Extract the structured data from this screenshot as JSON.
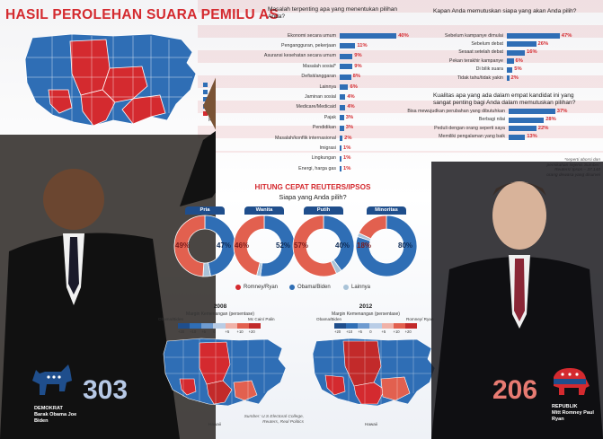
{
  "title": "HASIL PEROLEHAN SUARA PEMILU AS",
  "colors": {
    "red": "#d42a2f",
    "blue": "#2f6eb5",
    "gray": "#a9c3d8",
    "navy": "#1f4e8c"
  },
  "left_map_legend": [
    "D",
    "R"
  ],
  "chart_data": [
    {
      "type": "bar",
      "title": "Masalah terpenting apa yang menentukan pilihan Anda?",
      "categories": [
        "Ekonomi secara umum",
        "Pengangguran, pekerjaan",
        "Asuransi kesehatan secara umum",
        "Masalah sosial*",
        "Defisit/anggaran",
        "Lainnya",
        "Jaminan sosial",
        "Medicare/Medicaid",
        "Pajak",
        "Pendidikan",
        "Masalah/konflik internasional",
        "Imigrasi",
        "Lingkungan",
        "Energi, harga gas"
      ],
      "values": [
        40,
        11,
        9,
        9,
        8,
        6,
        4,
        4,
        3,
        3,
        2,
        1,
        1,
        1
      ],
      "labels": [
        "40%",
        "11%",
        "9%",
        "9%",
        "8%",
        "6%",
        "4%",
        "4%",
        "3%",
        "3%",
        "2%",
        "1%",
        "1%",
        "1%"
      ]
    },
    {
      "type": "bar",
      "title": "Kapan Anda memutuskan siapa yang akan Anda pilih?",
      "categories": [
        "Sebelum kampanye dimulai",
        "Sebelum debat",
        "Sesaat setelah debat",
        "Pekan terakhir kampanye",
        "Di bilik suara",
        "Tidak tahu/tidak yakin"
      ],
      "values": [
        47,
        26,
        16,
        6,
        5,
        2
      ],
      "labels": [
        "47%",
        "26%",
        "16%",
        "6%",
        "5%",
        "2%"
      ]
    },
    {
      "type": "bar",
      "title": "Kualitas apa yang ada dalam empat kandidat ini yang sangat penting bagi Anda dalam memutuskan pilihan?",
      "categories": [
        "Bisa mewujudkan perubahan yang dibutuhkan",
        "Berbagi nilai",
        "Peduli dengan orang seperti saya",
        "Memiliki pengalaman yang baik"
      ],
      "values": [
        37,
        28,
        22,
        13
      ],
      "labels": [
        "37%",
        "28%",
        "22%",
        "13%"
      ]
    },
    {
      "type": "pie",
      "title": "HITUNG CEPAT REUTERS/IPSOS",
      "subtitle": "Siapa yang Anda pilih?",
      "groups": [
        {
          "name": "Pria",
          "romney": 49,
          "obama": 47,
          "other": 4,
          "labels": [
            "49%",
            "47%"
          ]
        },
        {
          "name": "Wanita",
          "romney": 46,
          "obama": 52,
          "other": 2,
          "labels": [
            "46%",
            "52%"
          ]
        },
        {
          "name": "Putih",
          "romney": 57,
          "obama": 40,
          "other": 3,
          "labels": [
            "57%",
            "40%"
          ]
        },
        {
          "name": "Minoritas",
          "romney": 18,
          "obama": 80,
          "other": 2,
          "labels": [
            "18%",
            "80%"
          ]
        }
      ],
      "legend": [
        "Romney/Ryan",
        "Obama/Biden",
        "Lainnya"
      ]
    }
  ],
  "footnote": "*seperti aborsi dan pernikahan sejenis Sumber: Reuters/ Ipsos – 37.140 orang dewasa yang disurvei",
  "map2008": {
    "year": "2008",
    "subtitle": "Margin Kemenangan (persentase)",
    "left_label": "Obama/Biden",
    "right_label": "Mc Cain/ Palin",
    "scale_ticks": [
      "+20",
      "+10",
      "+5",
      "0",
      "+5",
      "+10",
      "+20"
    ]
  },
  "map2012": {
    "year": "2012",
    "subtitle": "Margin Kemenangan (persentase)",
    "left_label": "Obama/Biden",
    "right_label": "Romney/ Ryan",
    "scale_ticks": [
      "+20",
      "+10",
      "+5",
      "0",
      "+5",
      "+10",
      "+20"
    ]
  },
  "source": "Sumber: U.S Electoral College, Reuters, Real Politics",
  "hawaii": "Hawaii",
  "democrat": {
    "score": "303",
    "party": "DEMOKRAT",
    "names": "Barak Obama Joe Biden"
  },
  "republican": {
    "score": "206",
    "party": "REPUBLIK",
    "names": "Mitt Romney Paul Ryan"
  }
}
